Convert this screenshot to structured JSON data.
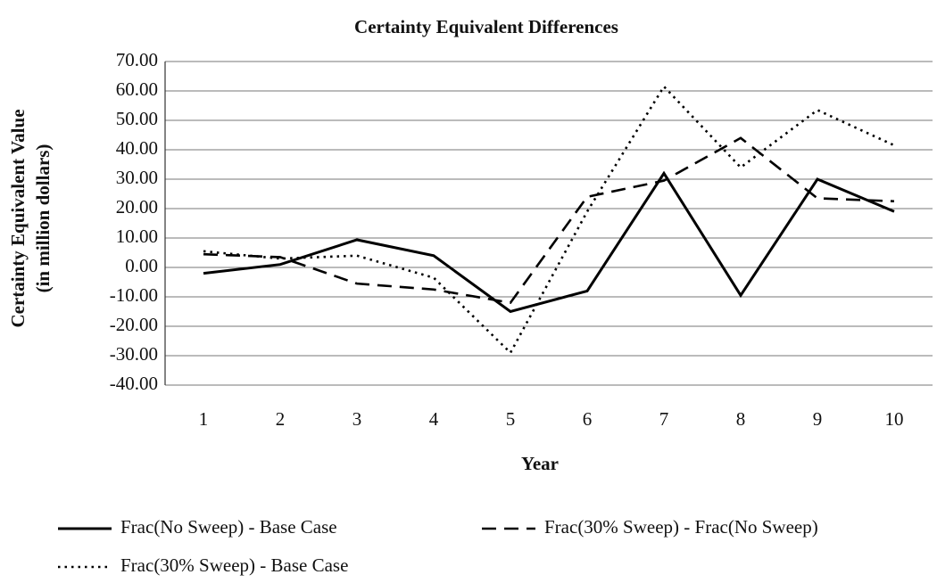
{
  "chart_data": {
    "type": "line",
    "title": "Certainty Equivalent Differences",
    "xlabel": "Year",
    "ylabel": [
      "Certainty Equivalent Value",
      "(in million dollars)"
    ],
    "categories": [
      "1",
      "2",
      "3",
      "4",
      "5",
      "6",
      "7",
      "8",
      "9",
      "10"
    ],
    "series": [
      {
        "name": "Frac(No Sweep) - Base Case",
        "color": "#000000",
        "style": "solid",
        "values": [
          -2,
          1,
          9.4,
          4,
          -15,
          -8,
          32,
          -9.5,
          30,
          19
        ]
      },
      {
        "name": "Frac(30% Sweep) - Frac(No Sweep)",
        "color": "#000000",
        "style": "dashed",
        "values": [
          4.5,
          3.5,
          -5.5,
          -7.5,
          -12,
          24,
          29.5,
          44,
          23.5,
          22.5
        ]
      },
      {
        "name": "Frac(30% Sweep) - Base Case",
        "color": "#000000",
        "style": "dotted",
        "values": [
          5.5,
          3,
          4,
          -3.5,
          -29,
          19,
          61.5,
          34,
          53.5,
          41.5
        ]
      }
    ],
    "ylim": [
      -40,
      70
    ],
    "yticks": [
      {
        "value": -40,
        "label": "-40.00"
      },
      {
        "value": -30,
        "label": "-30.00"
      },
      {
        "value": -20,
        "label": "-20.00"
      },
      {
        "value": -10,
        "label": "-10.00"
      },
      {
        "value": 0,
        "label": "0.00"
      },
      {
        "value": 10,
        "label": "10.00"
      },
      {
        "value": 20,
        "label": "20.00"
      },
      {
        "value": 30,
        "label": "30.00"
      },
      {
        "value": 40,
        "label": "40.00"
      },
      {
        "value": 50,
        "label": "50.00"
      },
      {
        "value": 60,
        "label": "60.00"
      },
      {
        "value": 70,
        "label": "70.00"
      }
    ],
    "grid": true
  }
}
